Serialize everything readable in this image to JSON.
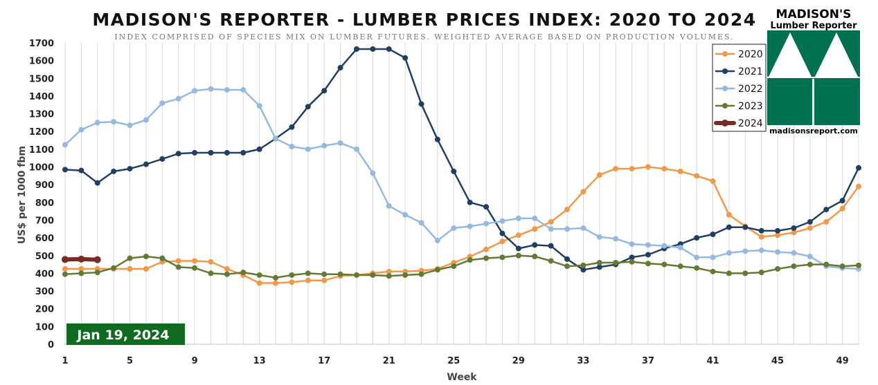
{
  "chart_data": {
    "type": "line",
    "title": "MADISON'S REPORTER - LUMBER PRICES INDEX: 2020 TO 2024",
    "subtitle": "INDEX COMPRISED OF SPECIES MIX ON LUMBER FUTURES. WEIGHTED AVERAGE BASED ON PRODUCTION VOLUMES.",
    "xlabel": "Week",
    "ylabel": "US$ per 1000 fbm",
    "xlim": [
      1,
      50
    ],
    "ylim": [
      0,
      1700
    ],
    "x_ticks": [
      1,
      5,
      9,
      13,
      17,
      21,
      25,
      29,
      33,
      37,
      41,
      45,
      49
    ],
    "y_ticks": [
      0,
      100,
      200,
      300,
      400,
      500,
      600,
      700,
      800,
      900,
      1000,
      1100,
      1200,
      1300,
      1400,
      1500,
      1600,
      1700
    ],
    "grid": "vertical",
    "legend_position": "top-right",
    "annotation": "Jan 19, 2024",
    "series": [
      {
        "name": "2020",
        "color": "#f0994a",
        "values": [
          425,
          425,
          425,
          425,
          425,
          425,
          465,
          470,
          470,
          465,
          425,
          390,
          345,
          345,
          350,
          360,
          360,
          385,
          390,
          400,
          410,
          410,
          415,
          425,
          460,
          495,
          535,
          580,
          615,
          650,
          690,
          760,
          860,
          955,
          990,
          990,
          1000,
          990,
          975,
          950,
          920,
          730,
          665,
          605,
          615,
          630,
          655,
          690,
          765,
          890
        ]
      },
      {
        "name": "2021",
        "color": "#213f63",
        "values": [
          985,
          980,
          910,
          975,
          990,
          1015,
          1045,
          1075,
          1080,
          1080,
          1080,
          1080,
          1100,
          1160,
          1225,
          1340,
          1430,
          1560,
          1665,
          1665,
          1665,
          1615,
          1355,
          1155,
          975,
          800,
          775,
          625,
          540,
          560,
          555,
          480,
          420,
          435,
          450,
          490,
          505,
          540,
          565,
          600,
          620,
          660,
          660,
          640,
          640,
          655,
          690,
          760,
          810,
          995
        ]
      },
      {
        "name": "2022",
        "color": "#95b9e0",
        "values": [
          1125,
          1210,
          1250,
          1255,
          1235,
          1265,
          1360,
          1385,
          1430,
          1440,
          1435,
          1435,
          1345,
          1160,
          1115,
          1100,
          1120,
          1135,
          1100,
          965,
          780,
          730,
          685,
          585,
          655,
          665,
          680,
          695,
          710,
          710,
          650,
          650,
          655,
          605,
          595,
          565,
          560,
          555,
          545,
          490,
          490,
          515,
          525,
          530,
          520,
          515,
          495,
          440,
          430,
          425
        ]
      },
      {
        "name": "2023",
        "color": "#637a33",
        "values": [
          395,
          400,
          405,
          430,
          485,
          495,
          485,
          435,
          430,
          400,
          395,
          405,
          390,
          375,
          390,
          400,
          395,
          395,
          390,
          390,
          385,
          390,
          395,
          420,
          440,
          475,
          485,
          490,
          500,
          495,
          470,
          440,
          445,
          460,
          460,
          465,
          455,
          450,
          440,
          430,
          410,
          400,
          400,
          405,
          425,
          440,
          450,
          450,
          440,
          445
        ]
      },
      {
        "name": "2024",
        "color": "#7a2a22",
        "values": [
          478,
          480,
          477
        ]
      }
    ]
  },
  "logo": {
    "title": "MADISON'S",
    "subtitle": "Lumber Reporter",
    "url": "madisonsreport.com",
    "color": "#007050"
  },
  "colors": {
    "grid": "#d9d9d9",
    "annotation_bg": "#0f6b1f"
  }
}
